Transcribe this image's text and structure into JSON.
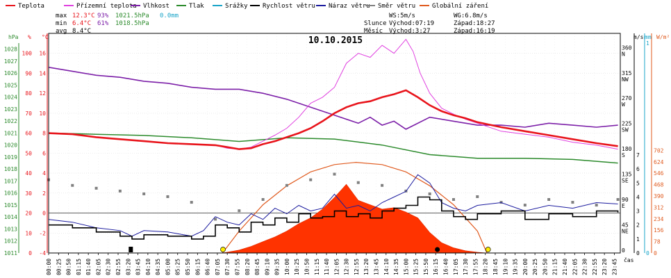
{
  "chart_data": {
    "type": "line",
    "title": "10.10.2015",
    "legend": [
      {
        "label": "Teplota",
        "color": "#e8141b"
      },
      {
        "label": "Přízemní teplota",
        "color": "#e040e0"
      },
      {
        "label": "Vlhkost",
        "color": "#7c1fa8"
      },
      {
        "label": "Tlak",
        "color": "#2b8a2b"
      },
      {
        "label": "Srážky",
        "color": "#19a4c8"
      },
      {
        "label": "Rychlost větru",
        "color": "#000000"
      },
      {
        "label": "Náraz větru",
        "color": "#1a1a9e"
      },
      {
        "label": "Směr větru",
        "color": "#808080"
      },
      {
        "label": "Globální záření",
        "color": "#e05a1e"
      }
    ],
    "stats": {
      "max_label": "max",
      "max_temp": "12.3°C",
      "max_hum": "93%",
      "max_press": "1021.5hPa",
      "max_rain": "0.0mm",
      "min_label": "min",
      "min_temp": "6.4°C",
      "min_hum": "61%",
      "min_press": "1018.5hPa",
      "avg_label": "avg",
      "avg_temp": "8.4°C"
    },
    "wind_info": {
      "ws": "WS:5m/s",
      "wg": "WG:6.8m/s"
    },
    "sun_info": {
      "label": "Slunce",
      "rise": "Východ:07:19",
      "set": "Západ:18:27"
    },
    "moon_info": {
      "label": "Měsíc",
      "rise": "Východ:3:27",
      "set": "Západ:16:19"
    },
    "axis_headers": {
      "hpa": "hPa",
      "pct": "%",
      "degc": "°C",
      "ms": "m/s",
      "mm": "mm",
      "wm2": "W/m²"
    },
    "x_axis_label": "čas",
    "x_ticks": [
      "00:00",
      "00:25",
      "00:50",
      "01:15",
      "01:40",
      "02:05",
      "02:30",
      "02:55",
      "03:20",
      "03:45",
      "04:10",
      "04:35",
      "05:00",
      "05:25",
      "05:50",
      "06:15",
      "06:40",
      "07:05",
      "07:30",
      "07:55",
      "08:20",
      "08:45",
      "09:10",
      "09:35",
      "10:00",
      "10:25",
      "10:50",
      "11:15",
      "11:40",
      "12:05",
      "12:30",
      "12:55",
      "13:20",
      "13:45",
      "14:10",
      "14:35",
      "15:00",
      "15:25",
      "15:50",
      "16:15",
      "16:40",
      "17:05",
      "17:30",
      "17:55",
      "18:20",
      "18:45",
      "19:10",
      "19:35",
      "20:00",
      "20:25",
      "20:50",
      "21:15",
      "21:40",
      "22:05",
      "22:30",
      "22:55",
      "23:20",
      "23:45"
    ],
    "y_axes": {
      "pressure": {
        "ticks": [
          "1011",
          "1012",
          "1013",
          "1014",
          "1015",
          "1016",
          "1017",
          "1018",
          "1019",
          "1020",
          "1021",
          "1022",
          "1023",
          "1024",
          "1025",
          "1026",
          "1027",
          "1028"
        ],
        "color": "#2b8a2b"
      },
      "humidity": {
        "ticks": [
          "0",
          "10",
          "20",
          "30",
          "40",
          "50",
          "60",
          "70",
          "80",
          "90",
          "100"
        ],
        "color": "#e8141b"
      },
      "temperature": {
        "ticks": [
          "-4",
          "-2",
          "0",
          "2",
          "4",
          "6",
          "8",
          "10",
          "12",
          "14",
          "16"
        ],
        "color": "#e8141b"
      },
      "direction": {
        "ticks": [
          "0",
          "45 NE",
          "90 E",
          "135 SE",
          "180 S",
          "225 SW",
          "270 W",
          "315 NW",
          "360 N"
        ],
        "color": "#000000"
      },
      "wind_ms": {
        "ticks": [
          "0",
          "1",
          "2",
          "3",
          "4",
          "5",
          "6",
          "7"
        ],
        "color": "#000000"
      },
      "rain_mm": {
        "ticks": [
          "0",
          "1"
        ],
        "color": "#19a4c8"
      },
      "radiation": {
        "ticks": [
          "0",
          "78",
          "156",
          "234",
          "312",
          "390",
          "468",
          "546",
          "624",
          "702"
        ],
        "color": "#e05a1e"
      }
    },
    "series": [
      {
        "name": "Teplota",
        "unit": "°C",
        "color": "#e8141b",
        "x": [
          0,
          1,
          2,
          3,
          4,
          5,
          6,
          7,
          7.5,
          8,
          8.5,
          9,
          9.5,
          10,
          10.5,
          11,
          11.5,
          12,
          12.5,
          13,
          13.5,
          14,
          14.5,
          15,
          15.5,
          16,
          16.5,
          17,
          17.5,
          18,
          19,
          20,
          21,
          22,
          23,
          23.9
        ],
        "y": [
          8.0,
          7.9,
          7.6,
          7.4,
          7.2,
          7.0,
          6.9,
          6.8,
          6.6,
          6.4,
          6.5,
          6.9,
          7.2,
          7.6,
          8.0,
          8.5,
          9.2,
          10.0,
          10.6,
          11.0,
          11.2,
          11.6,
          11.9,
          12.3,
          11.6,
          10.8,
          10.2,
          9.8,
          9.5,
          9.1,
          8.6,
          8.2,
          7.8,
          7.4,
          7.0,
          6.7
        ]
      },
      {
        "name": "Přízemní teplota",
        "unit": "°C",
        "color": "#e040e0",
        "x": [
          0,
          1,
          2,
          3,
          4,
          5,
          6,
          7,
          7.5,
          8,
          8.5,
          9,
          9.5,
          10,
          10.5,
          11,
          11.5,
          12,
          12.5,
          13,
          13.5,
          14,
          14.5,
          15,
          15.3,
          15.6,
          16,
          16.5,
          17,
          17.5,
          18,
          19,
          20,
          21,
          22,
          23,
          23.9
        ],
        "y": [
          8.0,
          7.9,
          7.6,
          7.4,
          7.2,
          7.0,
          6.9,
          6.8,
          6.5,
          6.4,
          6.6,
          7.2,
          7.8,
          8.5,
          9.6,
          11.0,
          11.6,
          12.6,
          15.0,
          16.0,
          15.6,
          16.8,
          16.0,
          17.4,
          16.2,
          14.0,
          12.0,
          10.5,
          9.9,
          9.4,
          9.0,
          8.2,
          7.9,
          7.6,
          7.1,
          6.8,
          6.4
        ]
      },
      {
        "name": "Vlhkost",
        "unit": "%",
        "color": "#7c1fa8",
        "x": [
          0,
          1,
          2,
          3,
          4,
          5,
          6,
          7,
          8,
          9,
          10,
          11,
          12,
          13,
          13.5,
          14,
          14.5,
          15,
          16,
          17,
          18,
          19,
          20,
          21,
          22,
          23,
          23.9
        ],
        "y": [
          93,
          91,
          89,
          88,
          86,
          85,
          83,
          82,
          82,
          80,
          77,
          73,
          69,
          65,
          68,
          64,
          66,
          62,
          68,
          66,
          64,
          64,
          63,
          65,
          64,
          63,
          64
        ]
      },
      {
        "name": "Tlak",
        "unit": "hPa",
        "color": "#2b8a2b",
        "x": [
          0,
          2,
          4,
          6,
          8,
          10,
          12,
          14,
          16,
          18,
          20,
          22,
          23.9
        ],
        "y": [
          1021.0,
          1020.9,
          1020.8,
          1020.6,
          1020.3,
          1020.6,
          1020.5,
          1020.0,
          1019.2,
          1018.9,
          1018.9,
          1018.8,
          1018.5
        ]
      },
      {
        "name": "Rychlost větru",
        "unit": "m/s",
        "color": "#000000",
        "x": [
          0,
          1,
          2,
          3,
          3.5,
          4,
          5,
          6,
          6.5,
          7,
          7.5,
          8,
          8.5,
          9,
          9.5,
          10,
          10.5,
          11,
          11.5,
          12,
          12.5,
          13,
          13.5,
          14,
          14.5,
          15,
          15.5,
          16,
          16.5,
          17,
          17.5,
          18,
          19,
          20,
          21,
          22,
          23,
          23.9
        ],
        "y": [
          2.0,
          1.8,
          1.5,
          1.2,
          1.0,
          1.3,
          1.2,
          1.0,
          1.2,
          2.0,
          1.8,
          1.5,
          2.2,
          2.0,
          2.5,
          2.2,
          2.8,
          2.5,
          2.6,
          3.0,
          2.6,
          2.8,
          2.5,
          3.0,
          3.2,
          3.4,
          4.0,
          3.8,
          3.0,
          2.6,
          2.4,
          2.8,
          3.0,
          2.4,
          2.8,
          2.6,
          3.0,
          2.9
        ]
      },
      {
        "name": "Náraz větru",
        "unit": "m/s",
        "color": "#1a1a9e",
        "x": [
          0,
          1,
          2,
          3,
          3.5,
          4,
          5,
          6,
          6.5,
          7,
          7.5,
          8,
          8.5,
          9,
          9.5,
          10,
          10.5,
          11,
          11.5,
          12,
          12.5,
          13,
          13.5,
          14,
          14.5,
          15,
          15.5,
          16,
          16.5,
          17,
          17.5,
          18,
          19,
          20,
          21,
          22,
          23,
          23.9
        ],
        "y": [
          2.4,
          2.2,
          1.8,
          1.6,
          1.2,
          1.6,
          1.5,
          1.2,
          1.6,
          2.6,
          2.2,
          2.0,
          2.8,
          2.4,
          3.2,
          2.8,
          3.4,
          3.0,
          3.2,
          4.2,
          3.2,
          3.4,
          3.0,
          3.6,
          4.0,
          4.4,
          5.6,
          5.0,
          3.6,
          3.2,
          3.0,
          3.4,
          3.6,
          3.0,
          3.4,
          3.2,
          3.6,
          3.5
        ]
      },
      {
        "name": "Směr větru",
        "unit": "°",
        "color": "#808080",
        "x": [
          0,
          1,
          2,
          3,
          4,
          5,
          6,
          7,
          8,
          9,
          10,
          11,
          12,
          13,
          14,
          15,
          16,
          17,
          18,
          19,
          20,
          21,
          22,
          23,
          23.9
        ],
        "y": [
          130,
          120,
          115,
          110,
          105,
          100,
          90,
          60,
          75,
          95,
          120,
          130,
          140,
          125,
          120,
          110,
          105,
          95,
          100,
          90,
          85,
          95,
          90,
          85,
          95
        ]
      },
      {
        "name": "Globální záření",
        "unit": "W/m²",
        "color": "#e05a1e",
        "x": [
          7.3,
          8,
          8.5,
          9,
          9.5,
          10,
          10.5,
          11,
          11.5,
          12,
          12.5,
          13,
          13.5,
          14,
          14.5,
          15,
          15.5,
          16,
          16.5,
          17,
          17.5,
          18,
          18.4
        ],
        "y": [
          0,
          20,
          45,
          78,
          110,
          150,
          200,
          240,
          300,
          380,
          470,
          360,
          330,
          300,
          310,
          280,
          240,
          140,
          70,
          35,
          15,
          5,
          0
        ]
      },
      {
        "name": "Teoretické záření",
        "unit": "W/m²",
        "color": "#e05a1e",
        "x": [
          7.3,
          8,
          9,
          10,
          11,
          12,
          12.9,
          14,
          15,
          16,
          17,
          18,
          18.4
        ],
        "y": [
          0,
          150,
          330,
          460,
          555,
          605,
          620,
          605,
          555,
          460,
          330,
          150,
          0
        ]
      }
    ],
    "x_range": [
      0,
      24
    ],
    "ylim_temperature": [
      -4,
      18
    ],
    "ylim_wind": [
      0,
      7.5
    ],
    "ylim_radiation": [
      0,
      780
    ],
    "ylim_direction": [
      0,
      390
    ],
    "grid": true,
    "legend_placement": "top"
  }
}
